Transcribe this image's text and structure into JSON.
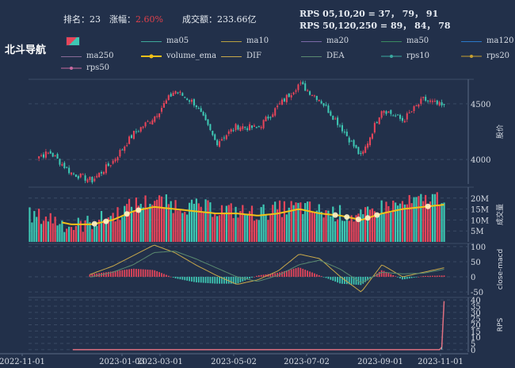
{
  "header": {
    "rank_label": "排名：23",
    "change_label": "涨幅：",
    "change_value": "2.60%",
    "turnover_label": "成交额：233.66亿",
    "rps_line1": "RPS 05,10,20 = 37， 79， 91",
    "rps_line2": "RPS 50,120,250 = 89， 84， 78"
  },
  "section_title": "北斗导航",
  "legend": [
    "ma05",
    "ma10",
    "ma20",
    "ma50",
    "ma120",
    "ma250",
    "volume_ema",
    "DIF",
    "DEA",
    "rps10",
    "rps20",
    "rps50"
  ],
  "colors": {
    "background": "#22304a",
    "up": "#e8455a",
    "down": "#3ec8b4",
    "volume_ema": "#f2c018",
    "dif": "#c8a84a",
    "dea": "#5a8a70",
    "rps": "#e07080",
    "change_text": "#e0404a"
  },
  "chart_data": {
    "type": "candlestick",
    "panels": [
      "price",
      "volume",
      "macd",
      "rps"
    ],
    "x_ticks": [
      "2022-11-01",
      "2023-01-03",
      "2023-03-01",
      "2023-05-02",
      "2023-07-02",
      "2023-09-01",
      "2023-11-01"
    ],
    "price": {
      "ylabel": "股价",
      "ticks": [
        4000,
        4500
      ],
      "ylim": [
        3780,
        4720
      ],
      "anchors": [
        4010,
        4060,
        3880,
        3810,
        3980,
        4230,
        4380,
        4620,
        4500,
        4150,
        4300,
        4280,
        4480,
        4680,
        4540,
        4300,
        4020,
        4460,
        4350,
        4540,
        4470
      ]
    },
    "volume": {
      "ylabel": "成交量",
      "ticks": [
        "5M",
        "10M",
        "15M",
        "20M"
      ],
      "tick_values": [
        5,
        10,
        15,
        20
      ],
      "ylim": [
        0,
        25
      ],
      "anchors": [
        12,
        11,
        7,
        9,
        12,
        17,
        19,
        17,
        16,
        15,
        14,
        13,
        15,
        16,
        14,
        13,
        11,
        16,
        17,
        19,
        21
      ],
      "ema_anchors": [
        11,
        10,
        8,
        8,
        10,
        14,
        16,
        15,
        14,
        13,
        13,
        12,
        13,
        15,
        13,
        12,
        10,
        13,
        15,
        16,
        17
      ]
    },
    "macd": {
      "ylabel": "close-macd",
      "ticks": [
        100,
        50,
        0,
        -50
      ],
      "ylim": [
        -60,
        110
      ],
      "dif_anchors": [
        0,
        0,
        -10,
        10,
        35,
        70,
        105,
        80,
        40,
        5,
        -25,
        -10,
        20,
        75,
        60,
        0,
        -50,
        40,
        0,
        15,
        30
      ],
      "dea_anchors": [
        0,
        0,
        -5,
        0,
        15,
        40,
        80,
        85,
        60,
        30,
        0,
        -15,
        5,
        40,
        55,
        25,
        -20,
        15,
        10,
        12,
        25
      ]
    },
    "rps": {
      "ylabel": "RPS",
      "ticks": [
        40,
        35,
        30,
        25,
        20,
        15,
        10,
        5,
        0
      ],
      "ylim": [
        -2,
        42
      ],
      "start_fraction": 0.125,
      "flat_value": 0,
      "final_values": [
        2,
        39
      ]
    }
  }
}
